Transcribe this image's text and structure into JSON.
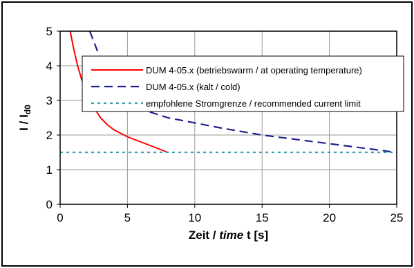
{
  "chart_data": {
    "type": "line",
    "xlabel": {
      "prefix": "Zeit / ",
      "italic": "time",
      "suffix": " t [s]"
    },
    "ylabel": {
      "main": "I / I",
      "sub": "d0"
    },
    "xlim": [
      0,
      25
    ],
    "ylim": [
      0,
      5
    ],
    "xticks": [
      "0",
      "5",
      "10",
      "15",
      "20",
      "25"
    ],
    "yticks": [
      "0",
      "1",
      "2",
      "3",
      "4",
      "5"
    ],
    "grid": true,
    "legend_position": "top-right",
    "series": [
      {
        "name": "DUM 4-05.x (betriebswarm / at operating temperature)",
        "color": "#ff0000",
        "style": "solid",
        "x": [
          0.75,
          1.0,
          1.3,
          1.6,
          2.0,
          2.5,
          3.0,
          3.5,
          4.0,
          5.0,
          6.0,
          7.0,
          8.0
        ],
        "y": [
          5.0,
          4.5,
          4.0,
          3.6,
          3.2,
          2.8,
          2.5,
          2.3,
          2.15,
          1.95,
          1.8,
          1.65,
          1.5
        ]
      },
      {
        "name": "DUM 4-05.x (kalt / cold)",
        "color": "#1f1f8f",
        "style": "dashed",
        "x": [
          2.2,
          2.5,
          3.0,
          3.5,
          4.0,
          5.0,
          6.0,
          8.0,
          10.0,
          12.0,
          15.0,
          18.0,
          20.0,
          22.0,
          24.0,
          24.8
        ],
        "y": [
          5.0,
          4.7,
          4.2,
          3.75,
          3.4,
          3.0,
          2.75,
          2.5,
          2.35,
          2.2,
          2.0,
          1.85,
          1.75,
          1.65,
          1.55,
          1.5
        ]
      },
      {
        "name": "empfohlene Stromgrenze / recommended current limit",
        "color": "#3a9fb5",
        "style": "dotted",
        "x": [
          0,
          25
        ],
        "y": [
          1.5,
          1.5
        ]
      }
    ]
  }
}
